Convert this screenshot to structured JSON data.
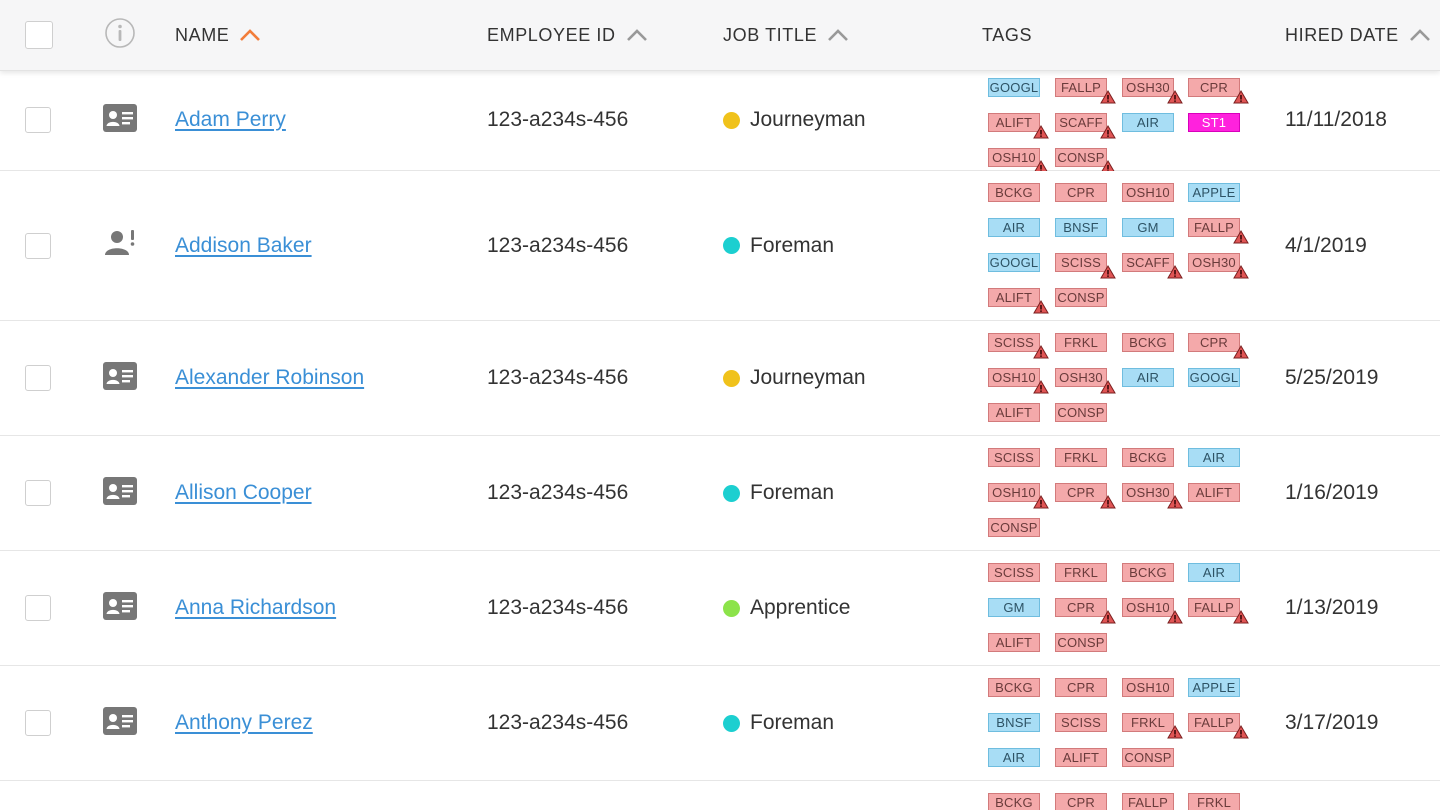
{
  "header": {
    "name": "NAME",
    "employee_id": "EMPLOYEE ID",
    "job_title": "JOB TITLE",
    "tags": "TAGS",
    "hired_date": "HIRED DATE"
  },
  "colors": {
    "link": "#3a8fd6",
    "sort_active": "#f27d3a",
    "sort_inactive": "#999999",
    "journeyman": "#f0c21b",
    "foreman": "#1ccfd0",
    "apprentice": "#8ce34a",
    "tag_expired": "#f4a9aa",
    "tag_valid": "#a8ddf5",
    "tag_highlight": "#ff22dd"
  },
  "rows": [
    {
      "name": "Adam Perry",
      "employee_id": "123-a234s-456",
      "job_title": "Journeyman",
      "job_color": "#f0c21b",
      "hired_date": "11/11/2018",
      "icon": "id-card-icon",
      "tags": [
        {
          "label": "GOOGL",
          "type": "blue",
          "warn": false
        },
        {
          "label": "FALLP",
          "type": "red",
          "warn": true
        },
        {
          "label": "OSH30",
          "type": "red",
          "warn": true
        },
        {
          "label": "CPR",
          "type": "red",
          "warn": true
        },
        {
          "label": "ALIFT",
          "type": "red",
          "warn": true
        },
        {
          "label": "SCAFF",
          "type": "red",
          "warn": true
        },
        {
          "label": "AIR",
          "type": "blue",
          "warn": false
        },
        {
          "label": "ST1",
          "type": "magenta",
          "warn": false
        },
        {
          "label": "OSH10",
          "type": "red",
          "warn": true
        },
        {
          "label": "CONSP",
          "type": "red",
          "warn": true
        }
      ]
    },
    {
      "name": "Addison Baker",
      "employee_id": "123-a234s-456",
      "job_title": "Foreman",
      "job_color": "#1ccfd0",
      "hired_date": "4/1/2019",
      "icon": "user-alert-icon",
      "tags": [
        {
          "label": "BCKG",
          "type": "red",
          "warn": false
        },
        {
          "label": "CPR",
          "type": "red",
          "warn": false
        },
        {
          "label": "OSH10",
          "type": "red",
          "warn": false
        },
        {
          "label": "APPLE",
          "type": "blue",
          "warn": false
        },
        {
          "label": "AIR",
          "type": "blue",
          "warn": false
        },
        {
          "label": "BNSF",
          "type": "blue",
          "warn": false
        },
        {
          "label": "GM",
          "type": "blue",
          "warn": false
        },
        {
          "label": "FALLP",
          "type": "red",
          "warn": true
        },
        {
          "label": "GOOGL",
          "type": "blue",
          "warn": false
        },
        {
          "label": "SCISS",
          "type": "red",
          "warn": true
        },
        {
          "label": "SCAFF",
          "type": "red",
          "warn": true
        },
        {
          "label": "OSH30",
          "type": "red",
          "warn": true
        },
        {
          "label": "ALIFT",
          "type": "red",
          "warn": true
        },
        {
          "label": "CONSP",
          "type": "red",
          "warn": false
        }
      ]
    },
    {
      "name": "Alexander Robinson",
      "employee_id": "123-a234s-456",
      "job_title": "Journeyman",
      "job_color": "#f0c21b",
      "hired_date": "5/25/2019",
      "icon": "id-card-icon",
      "tags": [
        {
          "label": "SCISS",
          "type": "red",
          "warn": true
        },
        {
          "label": "FRKL",
          "type": "red",
          "warn": false
        },
        {
          "label": "BCKG",
          "type": "red",
          "warn": false
        },
        {
          "label": "CPR",
          "type": "red",
          "warn": true
        },
        {
          "label": "OSH10",
          "type": "red",
          "warn": true
        },
        {
          "label": "OSH30",
          "type": "red",
          "warn": true
        },
        {
          "label": "AIR",
          "type": "blue",
          "warn": false
        },
        {
          "label": "GOOGL",
          "type": "blue",
          "warn": false
        },
        {
          "label": "ALIFT",
          "type": "red",
          "warn": false
        },
        {
          "label": "CONSP",
          "type": "red",
          "warn": false
        }
      ]
    },
    {
      "name": "Allison Cooper",
      "employee_id": "123-a234s-456",
      "job_title": "Foreman",
      "job_color": "#1ccfd0",
      "hired_date": "1/16/2019",
      "icon": "id-card-icon",
      "tags": [
        {
          "label": "SCISS",
          "type": "red",
          "warn": false
        },
        {
          "label": "FRKL",
          "type": "red",
          "warn": false
        },
        {
          "label": "BCKG",
          "type": "red",
          "warn": false
        },
        {
          "label": "AIR",
          "type": "blue",
          "warn": false
        },
        {
          "label": "OSH10",
          "type": "red",
          "warn": true
        },
        {
          "label": "CPR",
          "type": "red",
          "warn": true
        },
        {
          "label": "OSH30",
          "type": "red",
          "warn": true
        },
        {
          "label": "ALIFT",
          "type": "red",
          "warn": false
        },
        {
          "label": "CONSP",
          "type": "red",
          "warn": false
        }
      ]
    },
    {
      "name": "Anna Richardson",
      "employee_id": "123-a234s-456",
      "job_title": "Apprentice",
      "job_color": "#8ce34a",
      "hired_date": "1/13/2019",
      "icon": "id-card-icon",
      "tags": [
        {
          "label": "SCISS",
          "type": "red",
          "warn": false
        },
        {
          "label": "FRKL",
          "type": "red",
          "warn": false
        },
        {
          "label": "BCKG",
          "type": "red",
          "warn": false
        },
        {
          "label": "AIR",
          "type": "blue",
          "warn": false
        },
        {
          "label": "GM",
          "type": "blue",
          "warn": false
        },
        {
          "label": "CPR",
          "type": "red",
          "warn": true
        },
        {
          "label": "OSH10",
          "type": "red",
          "warn": true
        },
        {
          "label": "FALLP",
          "type": "red",
          "warn": true
        },
        {
          "label": "ALIFT",
          "type": "red",
          "warn": false
        },
        {
          "label": "CONSP",
          "type": "red",
          "warn": false
        }
      ]
    },
    {
      "name": "Anthony Perez",
      "employee_id": "123-a234s-456",
      "job_title": "Foreman",
      "job_color": "#1ccfd0",
      "hired_date": "3/17/2019",
      "icon": "id-card-icon",
      "tags": [
        {
          "label": "BCKG",
          "type": "red",
          "warn": false
        },
        {
          "label": "CPR",
          "type": "red",
          "warn": false
        },
        {
          "label": "OSH10",
          "type": "red",
          "warn": false
        },
        {
          "label": "APPLE",
          "type": "blue",
          "warn": false
        },
        {
          "label": "BNSF",
          "type": "blue",
          "warn": false
        },
        {
          "label": "SCISS",
          "type": "red",
          "warn": false
        },
        {
          "label": "FRKL",
          "type": "red",
          "warn": true
        },
        {
          "label": "FALLP",
          "type": "red",
          "warn": true
        },
        {
          "label": "AIR",
          "type": "blue",
          "warn": false
        },
        {
          "label": "ALIFT",
          "type": "red",
          "warn": false
        },
        {
          "label": "CONSP",
          "type": "red",
          "warn": false
        }
      ]
    },
    {
      "name": "",
      "employee_id": "",
      "job_title": "",
      "job_color": "",
      "hired_date": "",
      "icon": "",
      "tags": [
        {
          "label": "BCKG",
          "type": "red",
          "warn": false
        },
        {
          "label": "CPR",
          "type": "red",
          "warn": false
        },
        {
          "label": "FALLP",
          "type": "red",
          "warn": false
        },
        {
          "label": "FRKL",
          "type": "red",
          "warn": false
        }
      ]
    }
  ]
}
